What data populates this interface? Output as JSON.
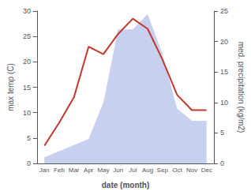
{
  "chart_data": {
    "type": "line",
    "categories": [
      "Jan",
      "Feb",
      "Mar",
      "Apr",
      "May",
      "Jun",
      "Jul",
      "Aug",
      "Sep",
      "Oct",
      "Nov",
      "Dec"
    ],
    "series": [
      {
        "type": "area",
        "color": "#c8d0f0",
        "axis": "y2",
        "values": [
          1.0,
          2.0,
          3.0,
          4.0,
          10.0,
          22.0,
          22.0,
          24.5,
          18.0,
          9.0,
          7.0,
          7.0
        ]
      },
      {
        "type": "line",
        "color": "#c0392b",
        "values": [
          3.5,
          8.0,
          13.0,
          23.0,
          21.5,
          25.5,
          28.5,
          26.5,
          20.5,
          13.5,
          10.5,
          10.5
        ]
      }
    ],
    "xlabel": "date (month)",
    "ylabel": "max temp (C)",
    "y2label": "med. precipitation (kg/m2)",
    "ylim": [
      0,
      30
    ],
    "yticks": [
      0,
      5,
      10,
      15,
      20,
      25,
      30
    ],
    "y2lim": [
      0,
      25
    ],
    "y2ticks": [
      0,
      5,
      10,
      15,
      20,
      25
    ],
    "grid": false
  }
}
